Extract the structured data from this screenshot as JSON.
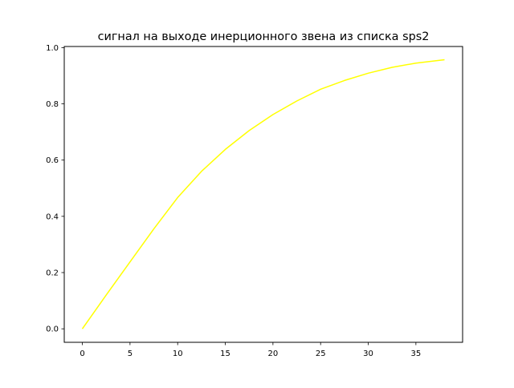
{
  "chart_data": {
    "type": "line",
    "title": "сигнал на выходе инерционного звена из списка sps2",
    "xlabel": "",
    "ylabel": "",
    "xlim": [
      -1.9,
      39.9
    ],
    "ylim": [
      -0.048,
      1.004
    ],
    "grid": false,
    "x_ticks": [
      0,
      5,
      10,
      15,
      20,
      25,
      30,
      35
    ],
    "x_tick_labels": [
      "0",
      "5",
      "10",
      "15",
      "20",
      "25",
      "30",
      "35"
    ],
    "y_ticks": [
      0,
      0.2,
      0.4,
      0.6,
      0.8,
      1.0
    ],
    "y_tick_labels": [
      "0.0",
      "0.2",
      "0.4",
      "0.6",
      "0.8",
      "1.0"
    ],
    "series": [
      {
        "color": "#ffff00",
        "x": [
          0,
          2.5,
          5,
          7.5,
          10,
          12.5,
          15,
          17.5,
          20,
          22.5,
          25,
          27.5,
          30,
          32.5,
          35,
          38
        ],
        "y": [
          0,
          0.12,
          0.238,
          0.355,
          0.467,
          0.56,
          0.638,
          0.705,
          0.762,
          0.81,
          0.852,
          0.883,
          0.909,
          0.93,
          0.945,
          0.957
        ]
      }
    ]
  }
}
